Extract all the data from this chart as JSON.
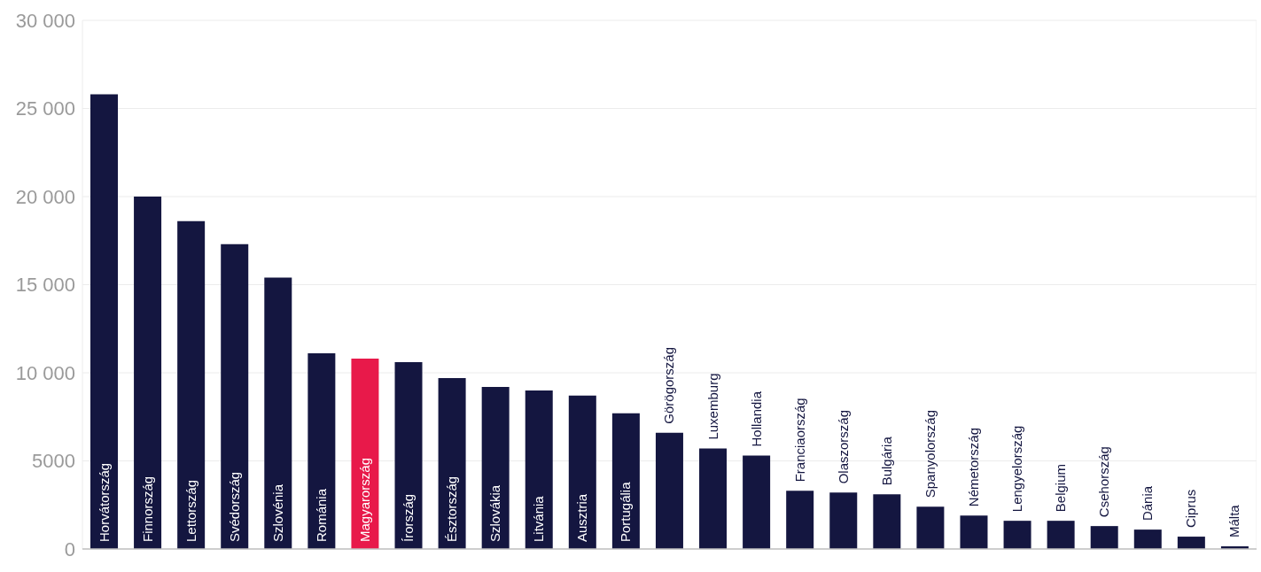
{
  "chart_data": {
    "type": "bar",
    "categories": [
      "Horvátország",
      "Finnország",
      "Lettország",
      "Svédország",
      "Szlovénia",
      "Románia",
      "Magyarország",
      "Írország",
      "Észtország",
      "Szlovákia",
      "Litvánia",
      "Ausztria",
      "Portugália",
      "Görögország",
      "Luxemburg",
      "Hollandia",
      "Franciaország",
      "Olaszország",
      "Bulgária",
      "Spanyolország",
      "Németország",
      "Lengyelország",
      "Belgium",
      "Csehország",
      "Dánia",
      "Ciprus",
      "Málta"
    ],
    "values": [
      25800,
      20000,
      18600,
      17300,
      15400,
      11100,
      10800,
      10600,
      9700,
      9200,
      9000,
      8700,
      7700,
      6600,
      5700,
      5300,
      3300,
      3200,
      3100,
      2400,
      1900,
      1600,
      1600,
      1300,
      1100,
      700,
      150
    ],
    "colors": [
      "#141640",
      "#141640",
      "#141640",
      "#141640",
      "#141640",
      "#141640",
      "#e8194a",
      "#141640",
      "#141640",
      "#141640",
      "#141640",
      "#141640",
      "#141640",
      "#141640",
      "#141640",
      "#141640",
      "#141640",
      "#141640",
      "#141640",
      "#141640",
      "#141640",
      "#141640",
      "#141640",
      "#141640",
      "#141640",
      "#141640",
      "#141640"
    ],
    "ylim": [
      0,
      30000
    ],
    "yticks": [
      0,
      {
        "value": 5000,
        "label": "5000"
      },
      {
        "value": 10000,
        "label": "10 000"
      },
      {
        "value": 15000,
        "label": "15 000"
      },
      {
        "value": 20000,
        "label": "20 000"
      },
      {
        "value": 25000,
        "label": "25 000"
      },
      {
        "value": 30000,
        "label": "30 000"
      }
    ],
    "grid": true
  }
}
